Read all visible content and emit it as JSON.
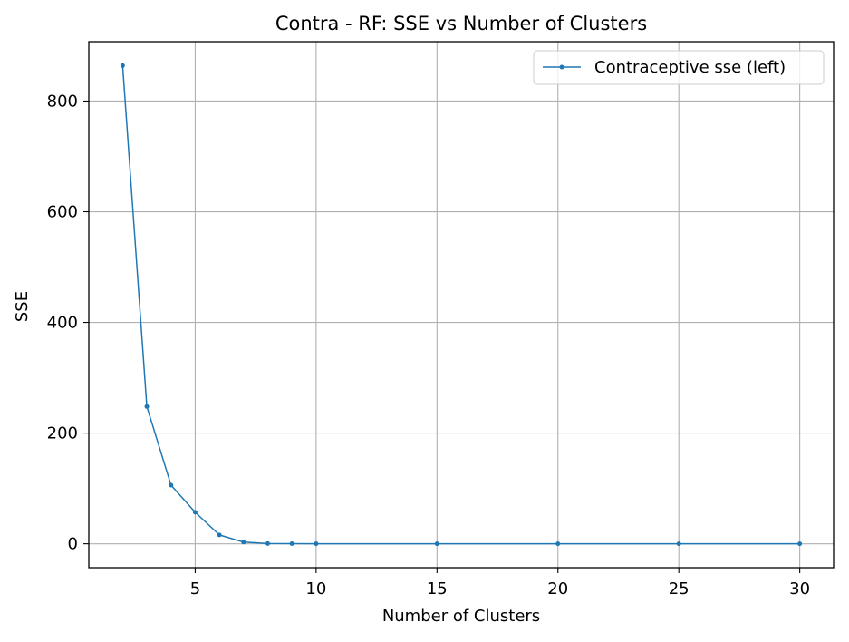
{
  "chart_data": {
    "type": "line",
    "title": "Contra - RF: SSE vs Number of Clusters",
    "xlabel": "Number of Clusters",
    "ylabel": "SSE",
    "xlim": [
      0.6,
      31.4
    ],
    "ylim": [
      -43.2,
      907.3
    ],
    "xticks": [
      5,
      10,
      15,
      20,
      25,
      30
    ],
    "yticks": [
      0,
      200,
      400,
      600,
      800
    ],
    "grid": true,
    "legend_position": "top-right",
    "series": [
      {
        "name": "Contraceptive sse (left)",
        "color": "#1f77b4",
        "marker": "circle",
        "x": [
          2,
          3,
          4,
          5,
          6,
          7,
          8,
          9,
          10,
          15,
          20,
          25,
          30
        ],
        "y": [
          864,
          248,
          106,
          57,
          16,
          3,
          0.5,
          0.2,
          0.1,
          0,
          0,
          0,
          0
        ]
      }
    ]
  }
}
